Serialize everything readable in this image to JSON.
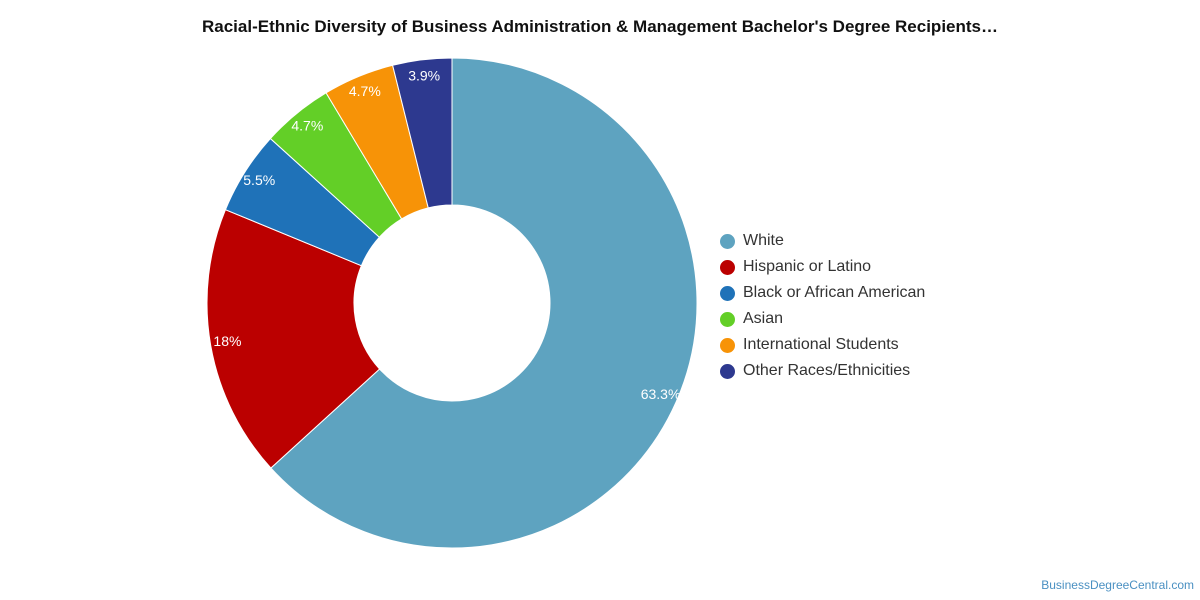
{
  "chart_data": {
    "type": "pie",
    "variant": "donut",
    "title": "Racial-Ethnic Diversity of Business Administration & Management Bachelor's Degree Recipients…",
    "series": [
      {
        "name": "White",
        "value": 63.3,
        "label": "63.3%",
        "color": "#5ea3c0"
      },
      {
        "name": "Hispanic or Latino",
        "value": 18,
        "label": "18%",
        "color": "#bb0000"
      },
      {
        "name": "Black or African American",
        "value": 5.5,
        "label": "5.5%",
        "color": "#1f72b8"
      },
      {
        "name": "Asian",
        "value": 4.7,
        "label": "4.7%",
        "color": "#63cf27"
      },
      {
        "name": "International Students",
        "value": 4.7,
        "label": "4.7%",
        "color": "#f79307"
      },
      {
        "name": "Other Races/Ethnicities",
        "value": 3.9,
        "label": "3.9%",
        "color": "#2d398f"
      }
    ],
    "legend_position": "right"
  },
  "credit": "BusinessDegreeCentral.com"
}
